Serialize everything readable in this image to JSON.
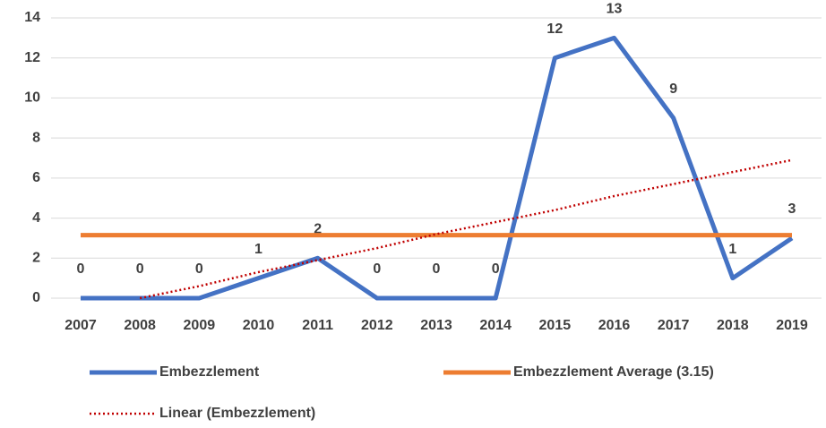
{
  "chart_data": {
    "type": "line",
    "categories": [
      "2007",
      "2008",
      "2009",
      "2010",
      "2011",
      "2012",
      "2013",
      "2014",
      "2015",
      "2016",
      "2017",
      "2018",
      "2019"
    ],
    "series": [
      {
        "name": "Embezzlement",
        "color": "#4472c4",
        "style": "solid",
        "data_labels": true,
        "values": [
          0,
          0,
          0,
          1,
          2,
          0,
          0,
          0,
          12,
          13,
          9,
          1,
          3
        ]
      },
      {
        "name": "Embezzlement Average (3.15)",
        "color": "#ed7d31",
        "style": "solid",
        "values": [
          3.15,
          3.15,
          3.15,
          3.15,
          3.15,
          3.15,
          3.15,
          3.15,
          3.15,
          3.15,
          3.15,
          3.15,
          3.15
        ]
      },
      {
        "name": "Linear (Embezzlement)",
        "color": "#c00000",
        "style": "dotted",
        "values": [
          null,
          0.0,
          0.6,
          1.3,
          1.9,
          2.5,
          3.2,
          3.8,
          4.4,
          5.1,
          5.7,
          6.3,
          6.9
        ]
      }
    ],
    "ylim": [
      0,
      14
    ],
    "yticks": [
      0,
      2,
      4,
      6,
      8,
      10,
      12,
      14
    ],
    "grid": true
  }
}
